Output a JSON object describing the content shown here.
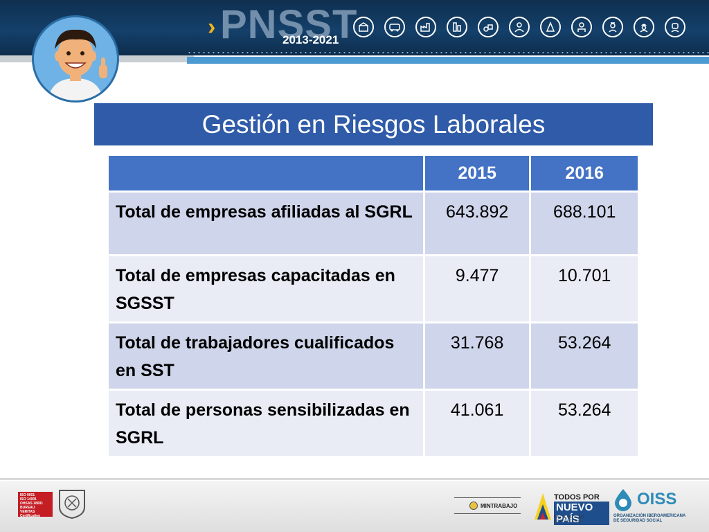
{
  "header": {
    "brand": "PNSST",
    "years": "2013-2021",
    "icons": [
      "construction-icon",
      "transport-icon",
      "factory-icon",
      "industry-icon",
      "agriculture-icon",
      "worker-icon",
      "mining-icon",
      "doctor-icon",
      "nurse-icon",
      "engineer-icon",
      "welder-icon"
    ]
  },
  "title": "Gestión en Riesgos Laborales",
  "table": {
    "headers": [
      "",
      "2015",
      "2016"
    ],
    "rows": [
      {
        "label": "Total de empresas afiliadas al SGRL",
        "y2015": "643.892",
        "y2016": "688.101"
      },
      {
        "label": "Total de empresas capacitadas en SGSST",
        "y2015": "9.477",
        "y2016": "10.701"
      },
      {
        "label": "Total de trabajadores cualificados en SST",
        "y2015": "31.768",
        "y2016": "53.264"
      },
      {
        "label": "Total de personas sensibilizadas en SGRL",
        "y2015": "41.061",
        "y2016": "53.264"
      }
    ]
  },
  "footer": {
    "iso_lines": [
      "ISO 9001",
      "ISO 14001",
      "OHSAS 18001",
      "BUREAU VERITAS",
      "Certification"
    ],
    "mintrabajo": "MINTRABAJO",
    "todos_line1": "TODOS POR UN",
    "todos_line2": "NUEVO PAÍS",
    "todos_line3": "PAZ  EQUIDAD  EDUCACIÓN",
    "oiss_name": "OISS",
    "oiss_sub_1": "ORGANIZACIÓN IBEROAMERICANA",
    "oiss_sub_2": "DE SEGURIDAD SOCIAL"
  },
  "colors": {
    "header_bg": "#14406a",
    "accent_yellow": "#f2b41b",
    "title_bar": "#2f5ba8",
    "table_header": "#4472c4",
    "row_dark": "#cfd5ea",
    "row_light": "#e9ebf5"
  }
}
